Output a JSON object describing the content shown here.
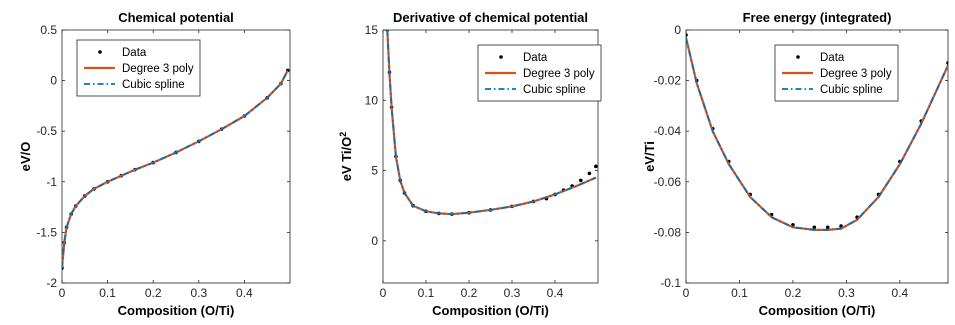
{
  "chart_data": [
    {
      "type": "line",
      "title": "Chemical potential",
      "xlabel": "Composition (O/Ti)",
      "ylabel": "eV/O",
      "xlim": [
        0,
        0.5
      ],
      "ylim": [
        -2,
        0.5
      ],
      "xticks": [
        0,
        0.1,
        0.2,
        0.3,
        0.4
      ],
      "xtick_labels": [
        "0",
        "0.1",
        "0.2",
        "0.3",
        "0.4"
      ],
      "yticks": [
        -2,
        -1.5,
        -1,
        -0.5,
        0,
        0.5
      ],
      "ytick_labels": [
        "-2",
        "-1.5",
        "-1",
        "-0.5",
        "0",
        "0.5"
      ],
      "grid": false,
      "legend_position": "top-center",
      "series": [
        {
          "name": "Data",
          "style": "dots",
          "color": "#000000",
          "x": [
            0.0,
            0.005,
            0.01,
            0.02,
            0.03,
            0.05,
            0.07,
            0.1,
            0.13,
            0.16,
            0.2,
            0.25,
            0.3,
            0.35,
            0.4,
            0.45,
            0.48,
            0.495
          ],
          "y": [
            -1.85,
            -1.6,
            -1.45,
            -1.32,
            -1.24,
            -1.14,
            -1.07,
            -1.0,
            -0.94,
            -0.88,
            -0.81,
            -0.71,
            -0.6,
            -0.48,
            -0.35,
            -0.17,
            -0.03,
            0.1
          ]
        },
        {
          "name": "Degree 3 poly",
          "style": "solid",
          "color": "#d95319",
          "x": [
            0.0,
            0.005,
            0.01,
            0.02,
            0.03,
            0.05,
            0.07,
            0.1,
            0.13,
            0.16,
            0.2,
            0.25,
            0.3,
            0.35,
            0.4,
            0.45,
            0.48,
            0.495
          ],
          "y": [
            -1.85,
            -1.6,
            -1.45,
            -1.32,
            -1.24,
            -1.14,
            -1.07,
            -1.0,
            -0.94,
            -0.88,
            -0.81,
            -0.71,
            -0.6,
            -0.48,
            -0.35,
            -0.17,
            -0.03,
            0.1
          ]
        },
        {
          "name": "Cubic spline",
          "style": "dashdot",
          "color": "#0072bd",
          "x": [
            0.0,
            0.005,
            0.01,
            0.02,
            0.03,
            0.05,
            0.07,
            0.1,
            0.13,
            0.16,
            0.2,
            0.25,
            0.3,
            0.35,
            0.4,
            0.45,
            0.48,
            0.495
          ],
          "y": [
            -1.85,
            -1.6,
            -1.45,
            -1.32,
            -1.24,
            -1.14,
            -1.07,
            -1.0,
            -0.94,
            -0.88,
            -0.81,
            -0.71,
            -0.6,
            -0.48,
            -0.35,
            -0.17,
            -0.03,
            0.1
          ]
        }
      ]
    },
    {
      "type": "line",
      "title": "Derivative of chemical potential",
      "xlabel": "Composition (O/Ti)",
      "ylabel": "eV Ti/O",
      "ylabel_superscript": "2",
      "xlim": [
        0,
        0.5
      ],
      "ylim": [
        -3,
        15
      ],
      "xticks": [
        0,
        0.1,
        0.2,
        0.3,
        0.4
      ],
      "xtick_labels": [
        "0",
        "0.1",
        "0.2",
        "0.3",
        "0.4"
      ],
      "yticks": [
        0,
        5,
        10,
        15
      ],
      "ytick_labels": [
        "0",
        "5",
        "10",
        "15"
      ],
      "grid": false,
      "legend_position": "top-right",
      "series": [
        {
          "name": "Data",
          "style": "dots",
          "color": "#000000",
          "x": [
            0.01,
            0.015,
            0.02,
            0.03,
            0.04,
            0.05,
            0.07,
            0.1,
            0.13,
            0.16,
            0.2,
            0.25,
            0.3,
            0.35,
            0.38,
            0.4,
            0.42,
            0.44,
            0.46,
            0.48,
            0.495
          ],
          "y": [
            15,
            12,
            9.5,
            6.0,
            4.3,
            3.4,
            2.5,
            2.1,
            1.95,
            1.9,
            2.0,
            2.2,
            2.45,
            2.8,
            3.0,
            3.3,
            3.6,
            3.9,
            4.3,
            4.8,
            5.3
          ]
        },
        {
          "name": "Degree 3 poly",
          "style": "solid",
          "color": "#d95319",
          "x": [
            0.01,
            0.015,
            0.02,
            0.03,
            0.04,
            0.05,
            0.07,
            0.1,
            0.13,
            0.16,
            0.2,
            0.25,
            0.3,
            0.35,
            0.4,
            0.45,
            0.495
          ],
          "y": [
            15,
            12,
            9.5,
            6.0,
            4.3,
            3.4,
            2.5,
            2.1,
            1.95,
            1.9,
            2.0,
            2.2,
            2.45,
            2.8,
            3.3,
            3.9,
            4.5
          ]
        },
        {
          "name": "Cubic spline",
          "style": "dashdot",
          "color": "#0072bd",
          "x": [
            0.01,
            0.015,
            0.02,
            0.03,
            0.04,
            0.05,
            0.07,
            0.1,
            0.13,
            0.16,
            0.2,
            0.25,
            0.3,
            0.35,
            0.4,
            0.45,
            0.495
          ],
          "y": [
            15,
            12,
            9.5,
            6.0,
            4.3,
            3.4,
            2.5,
            2.1,
            1.95,
            1.9,
            2.0,
            2.2,
            2.45,
            2.8,
            3.3,
            3.9,
            4.5
          ]
        }
      ]
    },
    {
      "type": "line",
      "title": "Free energy (integrated)",
      "xlabel": "Composition (O/Ti)",
      "ylabel": "eV/Ti",
      "xlim": [
        0,
        0.49
      ],
      "ylim": [
        -0.1,
        0
      ],
      "xticks": [
        0,
        0.1,
        0.2,
        0.3,
        0.4
      ],
      "xtick_labels": [
        "0",
        "0.1",
        "0.2",
        "0.3",
        "0.4"
      ],
      "yticks": [
        -0.1,
        -0.08,
        -0.06,
        -0.04,
        -0.02,
        0
      ],
      "ytick_labels": [
        "-0.1",
        "-0.08",
        "-0.06",
        "-0.04",
        "-0.02",
        "0"
      ],
      "grid": false,
      "legend_position": "top-right",
      "series": [
        {
          "name": "Data",
          "style": "dots",
          "color": "#000000",
          "x": [
            0.0,
            0.02,
            0.05,
            0.08,
            0.12,
            0.16,
            0.2,
            0.24,
            0.265,
            0.29,
            0.32,
            0.36,
            0.4,
            0.44,
            0.49
          ],
          "y": [
            -0.002,
            -0.02,
            -0.039,
            -0.052,
            -0.065,
            -0.073,
            -0.077,
            -0.078,
            -0.078,
            -0.0775,
            -0.074,
            -0.065,
            -0.052,
            -0.036,
            -0.013
          ]
        },
        {
          "name": "Degree 3 poly",
          "style": "solid",
          "color": "#d95319",
          "x": [
            0.0,
            0.02,
            0.05,
            0.08,
            0.12,
            0.16,
            0.2,
            0.24,
            0.265,
            0.29,
            0.32,
            0.36,
            0.4,
            0.44,
            0.49
          ],
          "y": [
            -0.003,
            -0.021,
            -0.04,
            -0.053,
            -0.066,
            -0.074,
            -0.078,
            -0.079,
            -0.079,
            -0.0785,
            -0.075,
            -0.066,
            -0.053,
            -0.037,
            -0.014
          ]
        },
        {
          "name": "Cubic spline",
          "style": "dashdot",
          "color": "#0072bd",
          "x": [
            0.0,
            0.02,
            0.05,
            0.08,
            0.12,
            0.16,
            0.2,
            0.24,
            0.265,
            0.29,
            0.32,
            0.36,
            0.4,
            0.44,
            0.49
          ],
          "y": [
            -0.003,
            -0.021,
            -0.04,
            -0.053,
            -0.066,
            -0.074,
            -0.078,
            -0.079,
            -0.079,
            -0.0785,
            -0.075,
            -0.066,
            -0.053,
            -0.037,
            -0.014
          ]
        }
      ]
    }
  ]
}
